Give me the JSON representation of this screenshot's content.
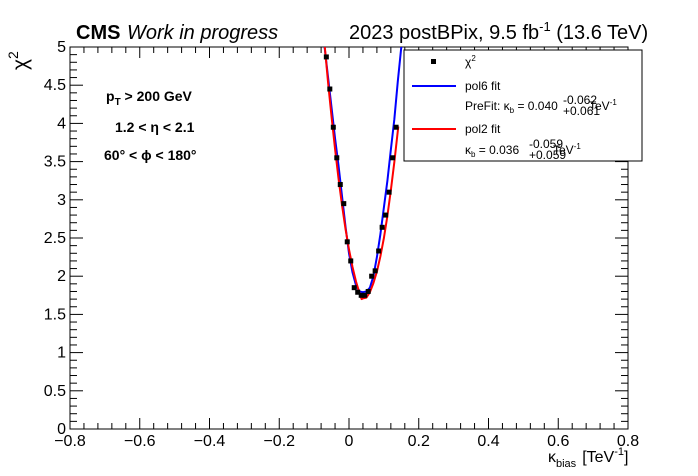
{
  "chart_data": {
    "type": "scatter",
    "header": {
      "experiment": "CMS",
      "status": "Work in progress",
      "dataset_prefix": "2023 postBPix, 9.5 fb",
      "lumi_exp": "-1",
      "energy": " (13.6 TeV)"
    },
    "xlabel": {
      "symbol": "κ",
      "sub": "bias",
      "unit": "[TeV",
      "unit_exp": "-1",
      "unit_close": "]"
    },
    "ylabel": {
      "symbol": "χ",
      "sup": "2"
    },
    "xlim": [
      -0.8,
      0.8
    ],
    "ylim": [
      0,
      5
    ],
    "xticks": [
      "−0.8",
      "−0.6",
      "−0.4",
      "−0.2",
      "0",
      "0.2",
      "0.4",
      "0.6",
      "0.8"
    ],
    "yticks": [
      "0",
      "0.5",
      "1",
      "1.5",
      "2",
      "2.5",
      "3",
      "3.5",
      "4",
      "4.5",
      "5"
    ],
    "cuts": {
      "pt": {
        "p": "p",
        "sub": "T",
        "rest": " > 200 GeV"
      },
      "eta": "1.2 < η < 2.1",
      "phi": "60° < ϕ < 180°"
    },
    "legend": {
      "points_label": "χ",
      "points_sup": "2",
      "pol6_label": "pol6 fit",
      "prefit_prefix": "PreFit: κ",
      "prefit_sub": "b",
      "prefit_value": " = 0.040",
      "prefit_up": "-0.062",
      "prefit_down": "+0.061",
      "prefit_unit": " TeV",
      "prefit_unit_exp": "-1",
      "pol2_label": "pol2 fit",
      "pol2_prefix": "κ",
      "pol2_sub": "b",
      "pol2_value": " = 0.036",
      "pol2_up": "-0.059",
      "pol2_down": "+0.059",
      "pol2_unit": " TeV",
      "pol2_unit_exp": "-1"
    },
    "series": [
      {
        "name": "χ2",
        "kind": "points",
        "color": "#000000",
        "x": [
          -0.065,
          -0.055,
          -0.045,
          -0.035,
          -0.025,
          -0.015,
          -0.005,
          0.005,
          0.015,
          0.025,
          0.035,
          0.045,
          0.055,
          0.065,
          0.075,
          0.085,
          0.095,
          0.105,
          0.115,
          0.125,
          0.135
        ],
        "y": [
          4.87,
          4.45,
          3.95,
          3.55,
          3.2,
          2.95,
          2.45,
          2.2,
          1.85,
          1.79,
          1.75,
          1.75,
          1.8,
          2.0,
          2.07,
          2.33,
          2.64,
          2.8,
          3.1,
          3.55,
          3.95
        ]
      },
      {
        "name": "pol6 fit",
        "kind": "line",
        "color": "#0000ff",
        "x": [
          -0.07,
          -0.06,
          -0.05,
          -0.04,
          -0.03,
          -0.02,
          -0.01,
          0.0,
          0.01,
          0.02,
          0.03,
          0.04,
          0.05,
          0.06,
          0.07,
          0.08,
          0.09,
          0.1,
          0.11,
          0.12,
          0.13,
          0.14,
          0.15
        ],
        "y": [
          5.0,
          4.6,
          4.2,
          3.8,
          3.45,
          3.05,
          2.65,
          2.3,
          2.05,
          1.88,
          1.8,
          1.79,
          1.8,
          1.85,
          2.0,
          2.25,
          2.55,
          2.9,
          3.25,
          3.65,
          4.05,
          4.55,
          5.0
        ]
      },
      {
        "name": "pol2 fit",
        "kind": "line",
        "color": "#ff0000",
        "x": [
          -0.0693,
          -0.06,
          -0.05,
          -0.04,
          -0.03,
          -0.02,
          -0.01,
          0.0,
          0.01,
          0.02,
          0.03,
          0.036,
          0.04,
          0.05,
          0.06,
          0.07,
          0.08,
          0.09,
          0.1,
          0.11,
          0.12,
          0.13,
          0.1413
        ],
        "y": [
          5.0,
          4.53,
          4.08,
          3.66,
          3.28,
          2.93,
          2.62,
          2.35,
          2.12,
          1.93,
          1.78,
          1.7,
          1.71,
          1.72,
          1.79,
          1.91,
          2.06,
          2.26,
          2.5,
          2.79,
          3.12,
          3.49,
          3.96
        ]
      }
    ],
    "legend_placement": "top-right",
    "grid": false
  }
}
